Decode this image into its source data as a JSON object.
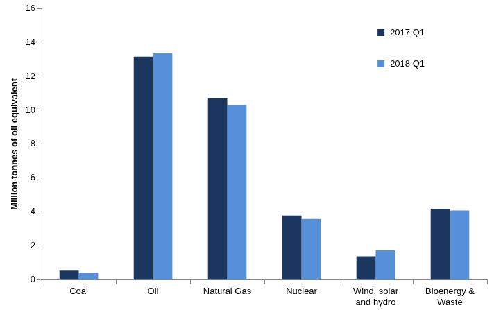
{
  "chart_data": {
    "type": "bar",
    "y_label": "Million tonnes of oil equivalent",
    "categories": [
      "Coal",
      "Oil",
      "Natural Gas",
      "Nuclear",
      "Wind, solar and hydro",
      "Bioenergy & Waste"
    ],
    "series": [
      {
        "name": "2017 Q1",
        "color": "#1b375f",
        "values": [
          0.55,
          13.15,
          10.7,
          3.8,
          1.4,
          4.2
        ]
      },
      {
        "name": "2018 Q1",
        "color": "#5590d8",
        "values": [
          0.4,
          13.35,
          10.3,
          3.6,
          1.75,
          4.1
        ]
      }
    ],
    "ylim": [
      0,
      16
    ],
    "yticks": [
      0,
      2,
      4,
      6,
      8,
      10,
      12,
      14,
      16
    ],
    "grid": false,
    "legend": "upper right"
  }
}
